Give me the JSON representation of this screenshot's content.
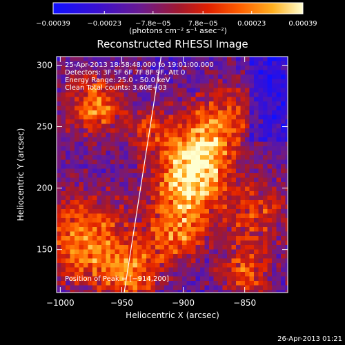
{
  "chart_data": {
    "type": "heatmap",
    "title": "Reconstructed RHESSI Image",
    "xlabel": "Heliocentric X (arcsec)",
    "ylabel": "Heliocentric Y (arcsec)",
    "xlim": [
      -1003,
      -815
    ],
    "ylim": [
      115,
      307
    ],
    "x_ticks": [
      -1000,
      -950,
      -900,
      -850
    ],
    "x_tick_labels": [
      "−1000",
      "−950",
      "−900",
      "−850"
    ],
    "y_ticks": [
      150,
      200,
      250,
      300
    ],
    "y_tick_labels": [
      "150",
      "200",
      "250",
      "300"
    ],
    "colorbar": {
      "range": [
        -0.00039,
        0.00039
      ],
      "ticks": [
        -0.00039,
        -0.00023,
        -7.8e-05,
        7.8e-05,
        0.00023,
        0.00039
      ],
      "tick_labels": [
        "−0.00039",
        "−0.00023",
        "−7.8e−05",
        "7.8e−05",
        "0.00023",
        "0.00039"
      ],
      "unit_label": "(photons cm⁻² s⁻¹ asec⁻²)",
      "colormap": "blue-purple-red-orange-yellow-white"
    },
    "annotations": [
      "25-Apr-2013 18:58:48.000 to 19:01:00.000",
      "Detectors: 3F 5F 6F 7F 8F 9F, Att 0",
      "Energy Range: 25.0 - 50.0 keV",
      "Clean   Total counts: 3.60E+03"
    ],
    "peak_label": "Position of Peak = [−914,200]",
    "limb_line": [
      [
        -948,
        115
      ],
      [
        -918,
        307
      ]
    ],
    "grid": false
  },
  "footer_timestamp": "26-Apr-2013 01:21"
}
